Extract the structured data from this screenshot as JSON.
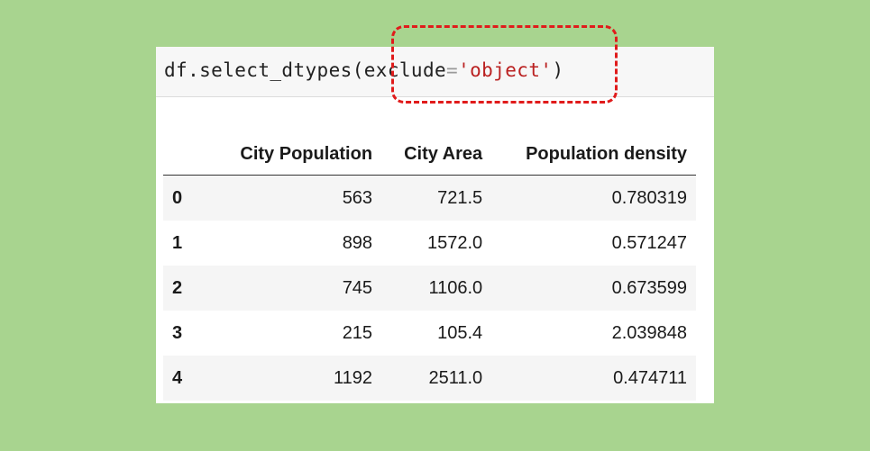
{
  "code": {
    "prefix": "df.select_dtypes(",
    "kwarg": "exclude",
    "operator": "=",
    "string_literal": "'object'",
    "suffix": ")"
  },
  "table": {
    "columns": [
      "City Population",
      "City Area",
      "Population density"
    ],
    "rows": [
      {
        "index": "0",
        "cells": [
          "563",
          "721.5",
          "0.780319"
        ]
      },
      {
        "index": "1",
        "cells": [
          "898",
          "1572.0",
          "0.571247"
        ]
      },
      {
        "index": "2",
        "cells": [
          "745",
          "1106.0",
          "0.673599"
        ]
      },
      {
        "index": "3",
        "cells": [
          "215",
          "105.4",
          "2.039848"
        ]
      },
      {
        "index": "4",
        "cells": [
          "1192",
          "2511.0",
          "0.474711"
        ]
      }
    ]
  },
  "colors": {
    "background": "#a8d48f",
    "highlight": "#e01b1b",
    "string": "#ba2121"
  }
}
